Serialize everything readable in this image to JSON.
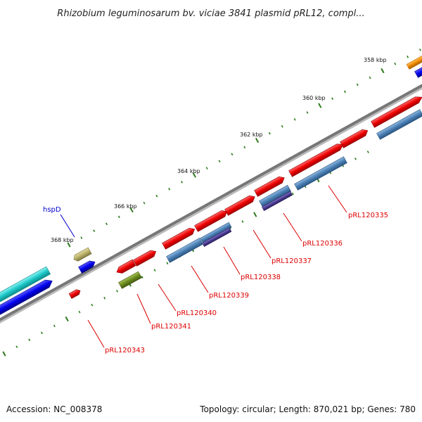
{
  "title": "Rhizobium leguminosarum bv. viciae 3841 plasmid pRL12, compl...",
  "footer": {
    "accession": "Accession: NC_008378",
    "summary": "Topology: circular; Length: 870,021 bp; Genes: 780"
  },
  "ticks": {
    "labels": [
      "358 kbp",
      "360 kbp",
      "362 kbp",
      "364 kbp",
      "366 kbp",
      "368 kbp"
    ]
  },
  "genes": {
    "labels": [
      "hspD",
      "pRL120335",
      "pRL120336",
      "pRL120337",
      "pRL120338",
      "pRL120339",
      "pRL120340",
      "pRL120341",
      "pRL120343"
    ]
  },
  "colors": {
    "backbone": "#777777",
    "tick": "#2a7a1a",
    "cds_red": "#ee0000",
    "cds_blue": "#0000ee",
    "cds_steel": "#4a7fb5",
    "cds_purple": "#4a3a90",
    "cds_cyan": "#1cc7c7",
    "cds_orange": "#f08a00",
    "cds_olive": "#6b8a1e",
    "cds_khaki": "#b8b068",
    "label_red": "#dd0000",
    "label_blue": "#0000cc"
  }
}
